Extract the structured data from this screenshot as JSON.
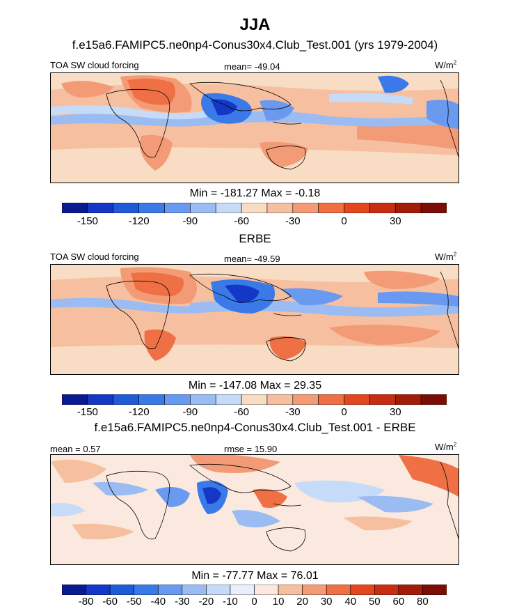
{
  "title": "JJA",
  "coast_color": "#000000",
  "panels": [
    {
      "id": "model",
      "title": "f.e15a6.FAMIPC5.ne0np4-Conus30x4.Club_Test.001 (yrs 1979-2004)",
      "left_label": "TOA SW cloud forcing",
      "center_label": "mean= -49.04",
      "units": "W/m",
      "units_sup": "2",
      "min_max": "Min = -181.27 Max =  -0.18",
      "colorbar_colors": [
        "#0a1a91",
        "#1537c7",
        "#1f5ad9",
        "#3a7ae8",
        "#6a9aef",
        "#9bbcf3",
        "#c6dbf8",
        "#f8dcc4",
        "#f6bfa0",
        "#f39b76",
        "#ee7044",
        "#e4461e",
        "#c72d12",
        "#a31c0a",
        "#7b0d05"
      ],
      "tick_labels": [
        "-150",
        "-120",
        "-90",
        "-60",
        "-30",
        "0",
        "30"
      ]
    },
    {
      "id": "obs",
      "title": "ERBE",
      "left_label": "TOA SW cloud forcing",
      "center_label": "mean= -49.59",
      "units": "W/m",
      "units_sup": "2",
      "min_max": "Min = -147.08 Max =  29.35",
      "colorbar_colors": [
        "#0a1a91",
        "#1537c7",
        "#1f5ad9",
        "#3a7ae8",
        "#6a9aef",
        "#9bbcf3",
        "#c6dbf8",
        "#f8dcc4",
        "#f6bfa0",
        "#f39b76",
        "#ee7044",
        "#e4461e",
        "#c72d12",
        "#a31c0a",
        "#7b0d05"
      ],
      "tick_labels": [
        "-150",
        "-120",
        "-90",
        "-60",
        "-30",
        "0",
        "30"
      ]
    },
    {
      "id": "diff",
      "title": "f.e15a6.FAMIPC5.ne0np4-Conus30x4.Club_Test.001 - ERBE",
      "left_label": "mean =   0.57",
      "center_label": "rmse =  15.90",
      "units": "W/m",
      "units_sup": "2",
      "min_max": "Min = -77.77 Max =  76.01",
      "colorbar_colors": [
        "#0a1a91",
        "#1537c7",
        "#1f5ad9",
        "#3a7ae8",
        "#6a9aef",
        "#9bbcf3",
        "#c6dbf8",
        "#e8eefb",
        "#fbe9df",
        "#f6bfa0",
        "#f39b76",
        "#ee7044",
        "#e4461e",
        "#c72d12",
        "#a31c0a",
        "#7b0d05"
      ],
      "tick_labels": [
        "-80",
        "-60",
        "-50",
        "-40",
        "-30",
        "-20",
        "-10",
        "0",
        "10",
        "20",
        "30",
        "40",
        "50",
        "60",
        "80"
      ]
    }
  ]
}
